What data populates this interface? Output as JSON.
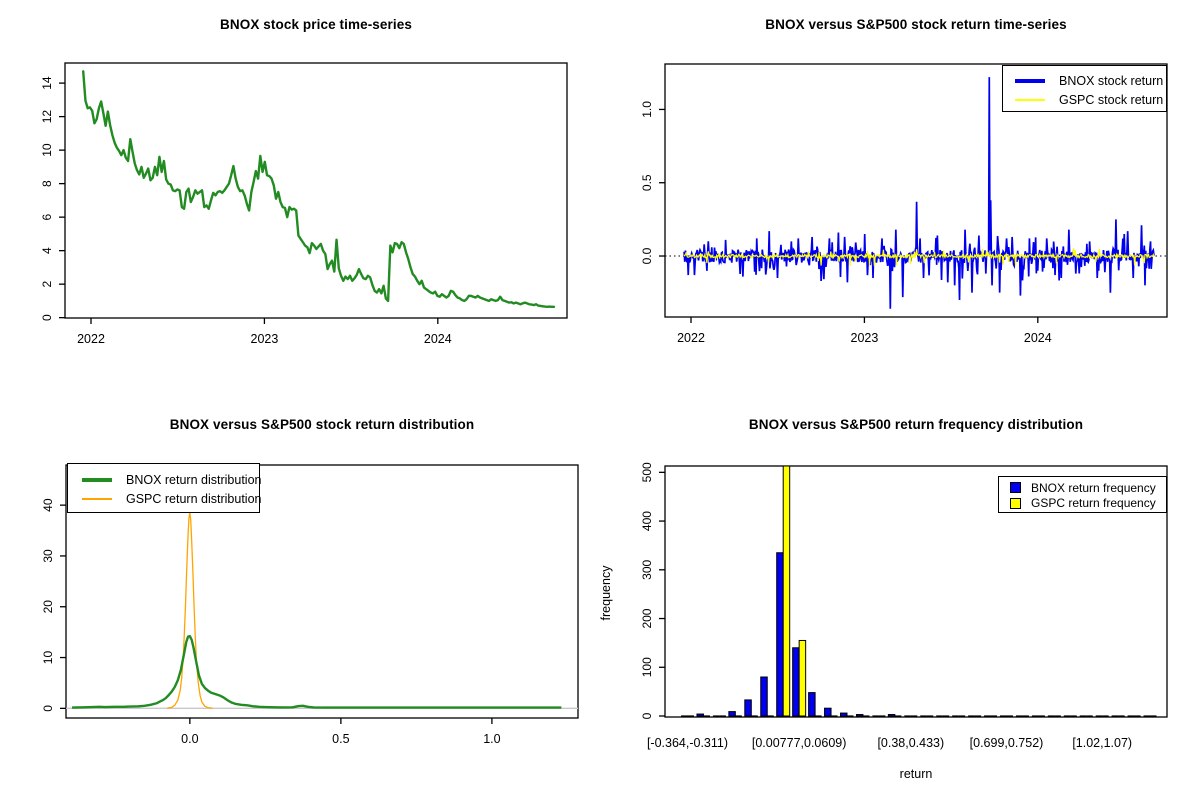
{
  "colors": {
    "bnox_green": "#228B22",
    "bnox_blue": "#0000EE",
    "gspc_yellow": "#FFFF00",
    "gspc_orange": "#FFA500",
    "axis_black": "#000000",
    "zero_gray": "#C8C8C8",
    "background": "#FFFFFF"
  },
  "chart_data": [
    {
      "type": "line",
      "title": "BNOX stock price time-series",
      "color": "#228B22",
      "xlim": [
        2021.85,
        2024.745
      ],
      "ylim": [
        -0.02,
        15.2
      ],
      "x_ticks": [
        {
          "v": 2022,
          "label": "2022"
        },
        {
          "v": 2023,
          "label": "2023"
        },
        {
          "v": 2024,
          "label": "2024"
        }
      ],
      "y_ticks": [
        {
          "v": 0,
          "label": "0"
        },
        {
          "v": 2,
          "label": "2"
        },
        {
          "v": 4,
          "label": "4"
        },
        {
          "v": 6,
          "label": "6"
        },
        {
          "v": 8,
          "label": "8"
        },
        {
          "v": 10,
          "label": "10"
        },
        {
          "v": 12,
          "label": "12"
        },
        {
          "v": 14,
          "label": "14"
        }
      ],
      "t_start": 2021.955,
      "t_end": 2024.67,
      "values": [
        14.7,
        12.95,
        12.5,
        12.55,
        12.35,
        11.6,
        11.85,
        12.5,
        12.9,
        12.2,
        11.45,
        12.3,
        11.5,
        10.9,
        10.45,
        10.15,
        9.95,
        9.7,
        10.0,
        9.55,
        9.35,
        10.65,
        9.9,
        9.2,
        8.8,
        8.55,
        9.0,
        8.35,
        8.6,
        8.9,
        8.2,
        8.35,
        9.0,
        8.5,
        9.6,
        8.7,
        9.35,
        8.25,
        8.0,
        7.95,
        7.6,
        7.55,
        7.65,
        7.6,
        6.6,
        6.5,
        7.5,
        7.7,
        6.9,
        7.2,
        7.6,
        7.4,
        7.5,
        7.6,
        6.6,
        6.7,
        6.5,
        7.0,
        7.45,
        7.3,
        7.5,
        7.55,
        7.45,
        7.6,
        7.8,
        8.0,
        8.5,
        9.05,
        8.3,
        7.8,
        7.55,
        7.6,
        7.3,
        6.8,
        6.4,
        7.5,
        8.1,
        8.75,
        8.3,
        9.65,
        8.7,
        9.3,
        8.5,
        8.45,
        8.3,
        7.9,
        7.1,
        7.5,
        6.9,
        6.6,
        6.55,
        6.0,
        6.6,
        6.45,
        6.5,
        6.4,
        4.9,
        4.7,
        4.5,
        4.3,
        4.2,
        3.85,
        4.45,
        4.3,
        4.1,
        4.25,
        4.4,
        4.0,
        3.8,
        2.9,
        3.2,
        3.4,
        2.75,
        4.65,
        2.95,
        2.5,
        2.2,
        2.45,
        2.3,
        2.5,
        2.2,
        2.35,
        2.55,
        2.9,
        2.6,
        2.35,
        2.3,
        2.5,
        2.4,
        1.95,
        1.6,
        1.5,
        1.7,
        1.45,
        1.9,
        1.15,
        1.0,
        4.3,
        3.9,
        4.45,
        4.4,
        4.15,
        4.5,
        4.4,
        3.9,
        3.5,
        3.0,
        2.6,
        2.45,
        2.2,
        2.0,
        2.2,
        1.8,
        1.7,
        1.6,
        1.5,
        1.45,
        1.55,
        1.3,
        1.25,
        1.4,
        1.3,
        1.2,
        1.3,
        1.6,
        1.55,
        1.35,
        1.2,
        1.15,
        1.05,
        1.0,
        1.1,
        1.3,
        1.3,
        1.25,
        1.2,
        1.3,
        1.2,
        1.15,
        1.1,
        1.05,
        1.0,
        1.1,
        1.05,
        1.0,
        1.05,
        1.25,
        1.05,
        1.0,
        0.95,
        0.9,
        0.92,
        0.85,
        0.9,
        0.85,
        0.8,
        0.85,
        0.9,
        0.85,
        0.8,
        0.78,
        0.75,
        0.8,
        0.72,
        0.7,
        0.68,
        0.66,
        0.65,
        0.66,
        0.65,
        0.65
      ]
    },
    {
      "type": "line",
      "title": "BNOX versus S&P500 stock return time-series",
      "xlim": [
        2021.85,
        2024.745
      ],
      "ylim": [
        -0.416,
        1.31
      ],
      "x_ticks": [
        {
          "v": 2022,
          "label": "2022"
        },
        {
          "v": 2023,
          "label": "2023"
        },
        {
          "v": 2024,
          "label": "2024"
        }
      ],
      "y_ticks": [
        {
          "v": 0,
          "label": "0.0"
        },
        {
          "v": 0.5,
          "label": "0.5"
        },
        {
          "v": 1.0,
          "label": "1.0"
        }
      ],
      "t_start": 2021.96,
      "t_end": 2024.67,
      "zero_line": {
        "value": 0,
        "style": "dotted",
        "color": "#000000"
      },
      "series": [
        {
          "name": "BNOX",
          "legend_label": "BNOX stock return",
          "color": "#0000EE",
          "n": 680,
          "seed": 11,
          "noise_amp": 0.09,
          "down_tail": 0.1,
          "up_tail": 0.08,
          "spikes": [
            [
              2022.02,
              -0.13
            ],
            [
              2022.1,
              0.1
            ],
            [
              2022.2,
              0.11
            ],
            [
              2022.3,
              -0.14
            ],
            [
              2022.38,
              0.12
            ],
            [
              2022.45,
              0.17
            ],
            [
              2022.5,
              -0.15
            ],
            [
              2022.58,
              0.1
            ],
            [
              2022.62,
              0.12
            ],
            [
              2022.7,
              0.13
            ],
            [
              2022.75,
              -0.17
            ],
            [
              2022.8,
              0.12
            ],
            [
              2022.85,
              0.16
            ],
            [
              2022.9,
              -0.18
            ],
            [
              2023.0,
              0.15
            ],
            [
              2023.05,
              -0.15
            ],
            [
              2023.1,
              0.12
            ],
            [
              2023.15,
              -0.36
            ],
            [
              2023.18,
              0.18
            ],
            [
              2023.22,
              -0.28
            ],
            [
              2023.3,
              0.37
            ],
            [
              2023.32,
              0.12
            ],
            [
              2023.34,
              -0.15
            ],
            [
              2023.42,
              0.14
            ],
            [
              2023.48,
              -0.18
            ],
            [
              2023.52,
              -0.2
            ],
            [
              2023.55,
              -0.3
            ],
            [
              2023.58,
              0.18
            ],
            [
              2023.62,
              -0.25
            ],
            [
              2023.66,
              0.14
            ],
            [
              2023.7,
              -0.12
            ],
            [
              2023.72,
              1.22
            ],
            [
              2023.727,
              0.38
            ],
            [
              2023.735,
              -0.2
            ],
            [
              2023.78,
              -0.25
            ],
            [
              2023.82,
              0.12
            ],
            [
              2023.85,
              0.13
            ],
            [
              2023.9,
              -0.27
            ],
            [
              2023.95,
              0.12
            ],
            [
              2024.0,
              -0.1
            ],
            [
              2024.05,
              0.12
            ],
            [
              2024.1,
              -0.13
            ],
            [
              2024.18,
              0.18
            ],
            [
              2024.22,
              -0.12
            ],
            [
              2024.3,
              0.1
            ],
            [
              2024.35,
              -0.1
            ],
            [
              2024.42,
              -0.25
            ],
            [
              2024.45,
              0.25
            ],
            [
              2024.5,
              0.15
            ],
            [
              2024.52,
              0.17
            ],
            [
              2024.55,
              -0.15
            ],
            [
              2024.6,
              0.21
            ],
            [
              2024.62,
              -0.2
            ],
            [
              2024.65,
              0.1
            ]
          ]
        },
        {
          "name": "GSPC",
          "legend_label": "GSPC stock return",
          "color": "#FFFF00",
          "n": 680,
          "seed": 29,
          "noise_amp": 0.022,
          "down_tail": 0.03,
          "up_tail": 0.03,
          "spikes": []
        }
      ]
    },
    {
      "type": "area",
      "title": "BNOX versus S&P500 stock return distribution",
      "xlim": [
        -0.41,
        1.285
      ],
      "ylim": [
        -1.9,
        47.9
      ],
      "x_ticks": [
        {
          "v": 0,
          "label": "0.0"
        },
        {
          "v": 0.5,
          "label": "0.5"
        },
        {
          "v": 1.0,
          "label": "1.0"
        }
      ],
      "y_ticks": [
        {
          "v": 0,
          "label": "0"
        },
        {
          "v": 10,
          "label": "10"
        },
        {
          "v": 20,
          "label": "20"
        },
        {
          "v": 30,
          "label": "30"
        },
        {
          "v": 40,
          "label": "40"
        }
      ],
      "zero_line": {
        "value": 0,
        "style": "solid",
        "color": "#C8C8C8"
      },
      "series": [
        {
          "name": "BNOX",
          "legend_label": "BNOX return distribution",
          "color": "#228B22",
          "peak": 14.2,
          "points": [
            [
              -0.39,
              0.15
            ],
            [
              -0.35,
              0.2
            ],
            [
              -0.3,
              0.3
            ],
            [
              -0.28,
              0.25
            ],
            [
              -0.25,
              0.3
            ],
            [
              -0.22,
              0.3
            ],
            [
              -0.2,
              0.35
            ],
            [
              -0.17,
              0.4
            ],
            [
              -0.15,
              0.5
            ],
            [
              -0.13,
              0.7
            ],
            [
              -0.11,
              1.0
            ],
            [
              -0.1,
              1.3
            ],
            [
              -0.09,
              1.6
            ],
            [
              -0.08,
              2.0
            ],
            [
              -0.07,
              2.6
            ],
            [
              -0.06,
              3.3
            ],
            [
              -0.05,
              4.2
            ],
            [
              -0.04,
              5.5
            ],
            [
              -0.03,
              7.5
            ],
            [
              -0.02,
              10.5
            ],
            [
              -0.012,
              13.0
            ],
            [
              -0.006,
              14.1
            ],
            [
              0,
              14.2
            ],
            [
              0.006,
              13.5
            ],
            [
              0.012,
              12.0
            ],
            [
              0.02,
              9.5
            ],
            [
              0.03,
              6.5
            ],
            [
              0.04,
              4.8
            ],
            [
              0.05,
              4.0
            ],
            [
              0.06,
              3.5
            ],
            [
              0.07,
              3.1
            ],
            [
              0.08,
              2.9
            ],
            [
              0.09,
              2.7
            ],
            [
              0.1,
              2.5
            ],
            [
              0.11,
              2.2
            ],
            [
              0.12,
              1.8
            ],
            [
              0.13,
              1.4
            ],
            [
              0.14,
              1.1
            ],
            [
              0.15,
              0.9
            ],
            [
              0.17,
              0.7
            ],
            [
              0.19,
              0.6
            ],
            [
              0.21,
              0.4
            ],
            [
              0.23,
              0.3
            ],
            [
              0.25,
              0.25
            ],
            [
              0.28,
              0.2
            ],
            [
              0.31,
              0.18
            ],
            [
              0.34,
              0.2
            ],
            [
              0.36,
              0.45
            ],
            [
              0.375,
              0.5
            ],
            [
              0.39,
              0.3
            ],
            [
              0.41,
              0.18
            ],
            [
              0.45,
              0.15
            ],
            [
              0.5,
              0.15
            ],
            [
              0.6,
              0.15
            ],
            [
              0.7,
              0.15
            ],
            [
              0.8,
              0.15
            ],
            [
              0.9,
              0.15
            ],
            [
              1.0,
              0.15
            ],
            [
              1.1,
              0.15
            ],
            [
              1.2,
              0.16
            ],
            [
              1.23,
              0.15
            ]
          ]
        },
        {
          "name": "GSPC",
          "legend_label": "GSPC return distribution",
          "color": "#FFA500",
          "peak": 38.6,
          "points": [
            [
              -0.075,
              0.05
            ],
            [
              -0.06,
              0.2
            ],
            [
              -0.05,
              0.6
            ],
            [
              -0.04,
              1.6
            ],
            [
              -0.032,
              3.5
            ],
            [
              -0.027,
              6
            ],
            [
              -0.022,
              10
            ],
            [
              -0.018,
              15
            ],
            [
              -0.014,
              21
            ],
            [
              -0.01,
              28
            ],
            [
              -0.006,
              34
            ],
            [
              -0.003,
              37.5
            ],
            [
              0,
              38.6
            ],
            [
              0.003,
              37
            ],
            [
              0.006,
              33
            ],
            [
              0.01,
              27
            ],
            [
              0.014,
              20
            ],
            [
              0.018,
              14
            ],
            [
              0.022,
              9
            ],
            [
              0.028,
              5
            ],
            [
              0.034,
              2.5
            ],
            [
              0.04,
              1.2
            ],
            [
              0.05,
              0.4
            ],
            [
              0.06,
              0.15
            ],
            [
              0.075,
              0.05
            ]
          ]
        }
      ]
    },
    {
      "type": "bar",
      "title": "BNOX versus S&P500 return frequency distribution",
      "xlabel": "return",
      "ylabel": "frequency",
      "ylim": [
        0,
        513
      ],
      "n_bins": 30,
      "bin_start": -0.364,
      "bin_width": 0.0531,
      "y_ticks": [
        {
          "v": 0,
          "label": "0"
        },
        {
          "v": 100,
          "label": "100"
        },
        {
          "v": 200,
          "label": "200"
        },
        {
          "v": 300,
          "label": "300"
        },
        {
          "v": 400,
          "label": "400"
        },
        {
          "v": 500,
          "label": "500"
        }
      ],
      "x_labels": [
        {
          "bin": 0,
          "label": "[-0.364,-0.311)"
        },
        {
          "bin": 7,
          "label": "[0.00777,0.0609)"
        },
        {
          "bin": 14,
          "label": "[0.38,0.433)"
        },
        {
          "bin": 20,
          "label": "[0.699,0.752)"
        },
        {
          "bin": 26,
          "label": "[1.02,1.07)"
        }
      ],
      "series": [
        {
          "name": "BNOX",
          "legend_label": "BNOX return frequency",
          "color": "#0000EE",
          "values": [
            2,
            4,
            2,
            9,
            33,
            80,
            335,
            140,
            48,
            16,
            6,
            3,
            1,
            3,
            1,
            1,
            1,
            0,
            1,
            1,
            0,
            1,
            0,
            1,
            1,
            0,
            1,
            0,
            0,
            1
          ]
        },
        {
          "name": "GSPC",
          "legend_label": "GSPC return frequency",
          "color": "#FFFF00",
          "values": [
            0,
            0,
            0,
            0,
            1,
            2,
            513,
            155,
            2,
            1,
            0,
            0,
            0,
            0,
            0,
            0,
            0,
            0,
            0,
            0,
            0,
            0,
            0,
            0,
            0,
            0,
            0,
            0,
            0,
            0
          ]
        }
      ]
    }
  ]
}
